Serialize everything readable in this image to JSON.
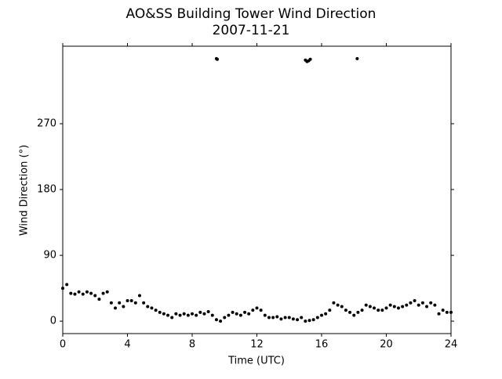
{
  "chart_data": {
    "type": "scatter",
    "title": "AO&SS Building Tower Wind Direction",
    "subtitle": "2007-11-21",
    "x_label": "Time (UTC)",
    "y_label": "Wind Direction (°)",
    "color": "#000000",
    "xlim": [
      0,
      24
    ],
    "xticks": [
      0,
      4,
      8,
      12,
      16,
      20,
      24
    ],
    "ylim": [
      -17,
      376
    ],
    "yticks": [
      0,
      90,
      180,
      270
    ],
    "grid": false,
    "x": [
      0,
      0.25,
      0.5,
      0.75,
      1,
      1.25,
      1.5,
      1.75,
      2,
      2.25,
      2.5,
      2.75,
      3,
      3.25,
      3.5,
      3.75,
      4,
      4.25,
      4.5,
      4.75,
      5,
      5.25,
      5.5,
      5.75,
      6,
      6.25,
      6.5,
      6.75,
      7,
      7.25,
      7.5,
      7.75,
      8,
      8.25,
      8.5,
      8.75,
      9,
      9.25,
      9.5,
      9.75,
      10,
      10.25,
      10.5,
      10.75,
      11,
      11.25,
      11.5,
      11.75,
      12,
      12.25,
      12.5,
      12.75,
      13,
      13.25,
      13.5,
      13.75,
      14,
      14.25,
      14.5,
      14.75,
      15,
      15.25,
      15.5,
      15.75,
      16,
      16.25,
      16.5,
      16.75,
      17,
      17.25,
      17.5,
      17.75,
      18,
      18.25,
      18.5,
      18.75,
      19,
      19.25,
      19.5,
      19.75,
      20,
      20.25,
      20.5,
      20.75,
      21,
      21.25,
      21.5,
      21.75,
      22,
      22.25,
      22.5,
      22.75,
      23,
      23.25,
      23.5,
      23.75,
      24,
      9.5,
      9.55,
      15.0,
      15.1,
      15.2,
      15.3,
      18.2
    ],
    "values": [
      45,
      50,
      38,
      37,
      40,
      37,
      40,
      38,
      35,
      30,
      38,
      40,
      25,
      18,
      25,
      20,
      28,
      28,
      25,
      35,
      25,
      20,
      18,
      15,
      12,
      10,
      8,
      5,
      10,
      8,
      10,
      8,
      10,
      8,
      12,
      10,
      13,
      8,
      2,
      0,
      5,
      8,
      12,
      10,
      8,
      12,
      10,
      15,
      18,
      15,
      8,
      5,
      5,
      6,
      3,
      5,
      5,
      3,
      2,
      5,
      0,
      1,
      2,
      5,
      8,
      10,
      15,
      25,
      22,
      20,
      15,
      12,
      8,
      12,
      15,
      22,
      20,
      18,
      15,
      15,
      18,
      22,
      20,
      18,
      20,
      22,
      25,
      28,
      22,
      25,
      20,
      25,
      22,
      10,
      15,
      12,
      12,
      359,
      358,
      357,
      355,
      356,
      358,
      359
    ]
  }
}
